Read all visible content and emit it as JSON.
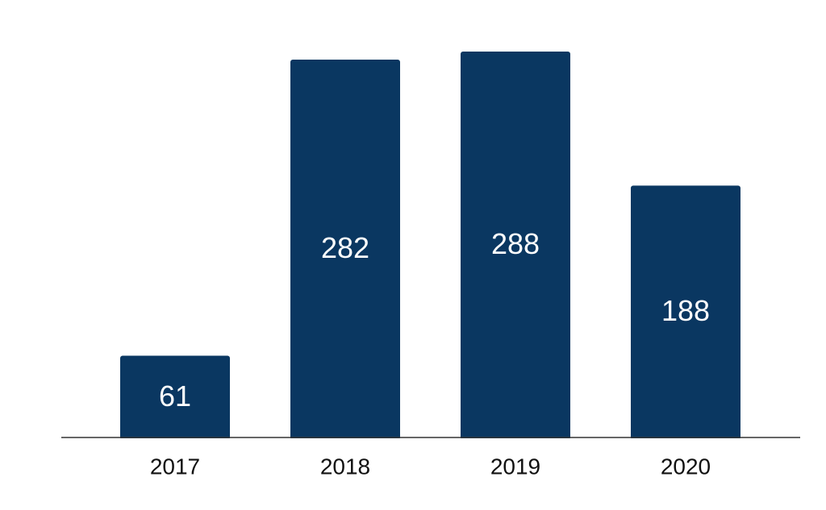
{
  "chart_data": {
    "type": "bar",
    "categories": [
      "2017",
      "2018",
      "2019",
      "2020"
    ],
    "values": [
      61,
      282,
      288,
      188
    ],
    "color": "#0a3761"
  }
}
